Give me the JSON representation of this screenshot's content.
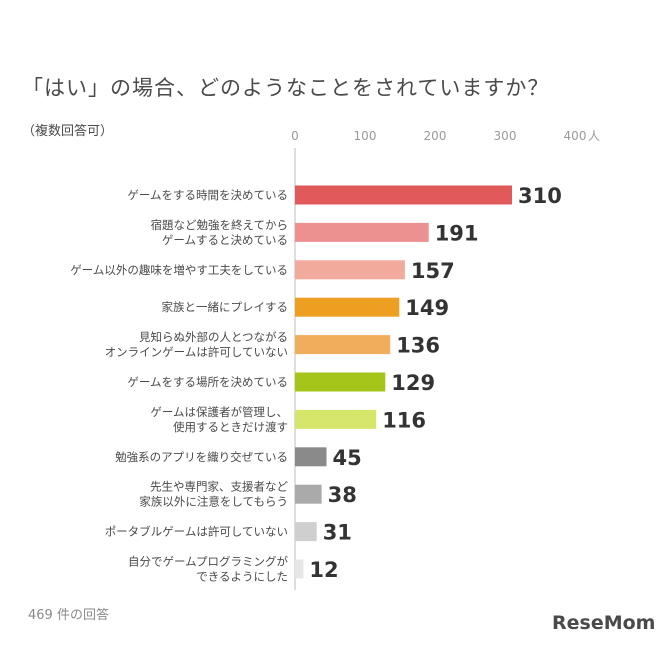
{
  "title": "「はい」の場合、どのようなことをされていますか？",
  "subtitle": "（複数回答可）",
  "footnote": "469 件の回答",
  "brand": "ReseMom",
  "chart_data": {
    "type": "bar",
    "orientation": "horizontal",
    "axis_unit": "人",
    "xlim": [
      0,
      400
    ],
    "ticks": [
      0,
      100,
      200,
      300,
      400
    ],
    "grid": false,
    "categories": [
      [
        "ゲームをする時間を決めている"
      ],
      [
        "宿題など勉強を終えてから",
        "ゲームすると決めている"
      ],
      [
        "ゲーム以外の趣味を増やす工夫をしている"
      ],
      [
        "家族と一緒にプレイする"
      ],
      [
        "見知らぬ外部の人とつながる",
        "オンラインゲームは許可していない"
      ],
      [
        "ゲームをする場所を決めている"
      ],
      [
        "ゲームは保護者が管理し、",
        "使用するときだけ渡す"
      ],
      [
        "勉強系のアプリを織り交ぜている"
      ],
      [
        "先生や専門家、支援者など",
        "家族以外に注意をしてもらう"
      ],
      [
        "ポータブルゲームは許可していない"
      ],
      [
        "自分でゲームプログラミングが",
        "できるようにした"
      ]
    ],
    "values": [
      310,
      191,
      157,
      149,
      136,
      129,
      116,
      45,
      38,
      31,
      12
    ],
    "colors": [
      "#e05a5a",
      "#ec9090",
      "#f2aa9c",
      "#ed9f22",
      "#f0ae5c",
      "#a6c51a",
      "#d6e66a",
      "#8a8a8a",
      "#aaaaaa",
      "#cfcfcf",
      "#e6e6e6"
    ]
  }
}
